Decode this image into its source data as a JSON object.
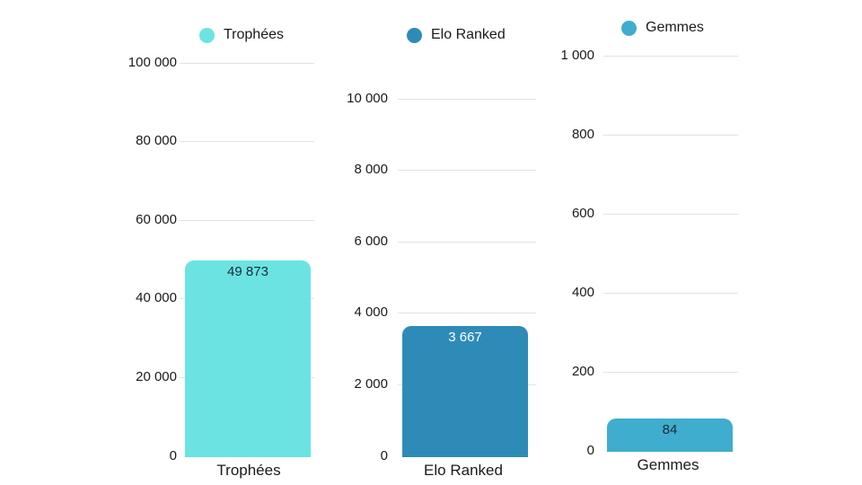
{
  "page": {
    "background": "#ffffff"
  },
  "chart_data": [
    {
      "type": "bar",
      "title": "Trophées",
      "legend": {
        "label": "Trophées",
        "marker_color": "#6ce3e3"
      },
      "categories": [
        "Trophées"
      ],
      "values": [
        49873
      ],
      "value_labels": [
        "49 873"
      ],
      "value_label_color": "#1c2b33",
      "bar_color": "#6ce3e3",
      "xlabel": "Trophées",
      "ylabel": "",
      "ylim": [
        0,
        100000
      ],
      "yticks": [
        "100 000",
        "80 000",
        "60 000",
        "40 000",
        "20 000",
        "0"
      ],
      "grid": true,
      "legend_position": "top"
    },
    {
      "type": "bar",
      "title": "Elo Ranked",
      "legend": {
        "label": "Elo Ranked",
        "marker_color": "#2e8bb8"
      },
      "categories": [
        "Elo Ranked"
      ],
      "values": [
        3667
      ],
      "value_labels": [
        "3 667"
      ],
      "value_label_color": "#ffffff",
      "bar_color": "#2e8bb8",
      "xlabel": "Elo Ranked",
      "ylabel": "",
      "ylim": [
        0,
        10000
      ],
      "yticks": [
        "10 000",
        "8 000",
        "6 000",
        "4 000",
        "2 000",
        "0"
      ],
      "grid": true,
      "legend_position": "top"
    },
    {
      "type": "bar",
      "title": "Gemmes",
      "legend": {
        "label": "Gemmes",
        "marker_color": "#3fadce"
      },
      "categories": [
        "Gemmes"
      ],
      "values": [
        84
      ],
      "value_labels": [
        "84"
      ],
      "value_label_color": "#1c2b33",
      "bar_color": "#3fadce",
      "xlabel": "Gemmes",
      "ylabel": "",
      "ylim": [
        0,
        1000
      ],
      "yticks": [
        "1 000",
        "800",
        "600",
        "400",
        "200",
        "0"
      ],
      "grid": true,
      "legend_position": "top"
    }
  ]
}
